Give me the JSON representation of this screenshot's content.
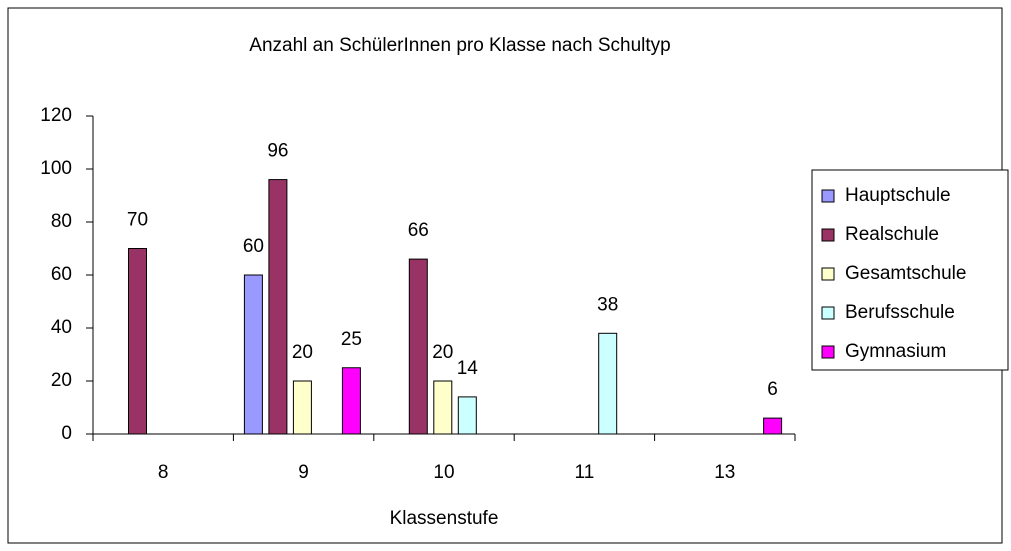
{
  "chart_data": {
    "type": "bar",
    "title": "Anzahl an SchülerInnen pro Klasse nach Schultyp",
    "x_label": "Klassenstufe",
    "categories": [
      "8",
      "9",
      "10",
      "11",
      "13"
    ],
    "series": [
      {
        "name": "Hauptschule",
        "color": "#9999ff",
        "values": [
          null,
          60,
          null,
          null,
          null
        ]
      },
      {
        "name": "Realschule",
        "color": "#993366",
        "values": [
          70,
          96,
          66,
          null,
          null
        ]
      },
      {
        "name": "Gesamtschule",
        "color": "#ffffcc",
        "values": [
          null,
          20,
          20,
          null,
          null
        ]
      },
      {
        "name": "Berufsschule",
        "color": "#ccffff",
        "values": [
          null,
          null,
          14,
          38,
          null
        ]
      },
      {
        "name": "Gymnasium",
        "color": "#ff00ff",
        "values": [
          null,
          25,
          null,
          null,
          6
        ]
      }
    ],
    "ylim": [
      0,
      120
    ],
    "yticks": [
      0,
      20,
      40,
      60,
      80,
      100,
      120
    ],
    "grid": false,
    "legend": "right"
  }
}
